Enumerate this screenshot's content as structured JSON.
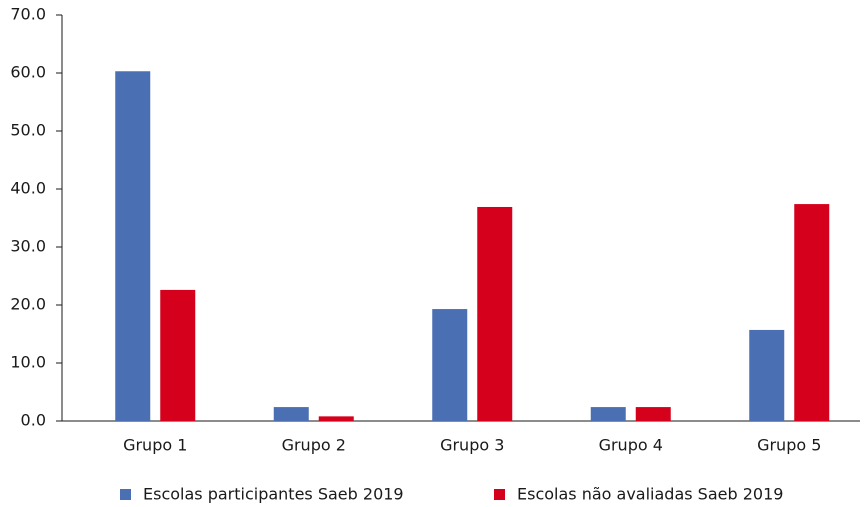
{
  "chart_data": {
    "type": "bar",
    "categories": [
      "Grupo 1",
      "Grupo 2",
      "Grupo 3",
      "Grupo 4",
      "Grupo 5"
    ],
    "series": [
      {
        "name": "Escolas participantes Saeb 2019",
        "color": "#4a6fb3",
        "values": [
          60.3,
          2.4,
          19.3,
          2.4,
          15.7
        ]
      },
      {
        "name": "Escolas não avaliadas Saeb 2019",
        "color": "#d5001c",
        "values": [
          22.6,
          0.8,
          36.9,
          2.4,
          37.4
        ]
      }
    ],
    "ylim": [
      0,
      70
    ],
    "yticks": [
      {
        "value": 0,
        "label": "0.0"
      },
      {
        "value": 10,
        "label": "10.0"
      },
      {
        "value": 20,
        "label": "20.0"
      },
      {
        "value": 30,
        "label": "30.0"
      },
      {
        "value": 40,
        "label": "40.0"
      },
      {
        "value": 50,
        "label": "50.0"
      },
      {
        "value": 60,
        "label": "60.0"
      },
      {
        "value": 70,
        "label": "70.0"
      }
    ],
    "grid": false
  }
}
